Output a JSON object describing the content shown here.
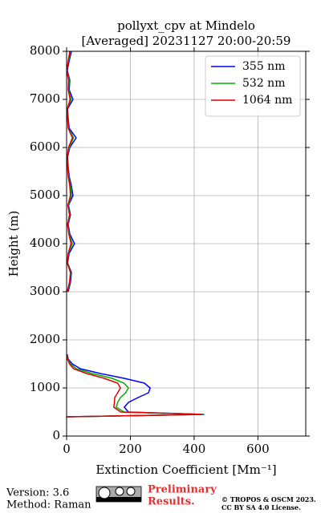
{
  "chart_data": {
    "type": "profile",
    "title": "pollyxt_cpv at Mindelo",
    "subtitle": "[Averaged] 20231127 20:00-20:59",
    "xlabel": "Extinction Coefficient [Mm⁻¹]",
    "ylabel": "Height (m)",
    "y": [
      400,
      450,
      500,
      600,
      700,
      800,
      900,
      1000,
      1100,
      1200,
      1300,
      1400,
      1500,
      1600,
      1700,
      2400,
      3000,
      3200,
      3400,
      3600,
      3800,
      4000,
      4200,
      4400,
      4600,
      4800,
      5000,
      5200,
      5400,
      5600,
      5800,
      6000,
      6200,
      6400,
      6600,
      6800,
      7000,
      7200,
      7400,
      7600,
      7800,
      8000
    ],
    "series": [
      {
        "name": "355 nm",
        "color": "#0000ff",
        "values": [
          0,
          432,
          194,
          181,
          194,
          224,
          257,
          262,
          244,
          181,
          106,
          43,
          18,
          5,
          2,
          null,
          5,
          12,
          15,
          3,
          8,
          25,
          10,
          5,
          12,
          6,
          20,
          15,
          8,
          5,
          3,
          10,
          30,
          8,
          5,
          3,
          20,
          8,
          10,
          2,
          8,
          15
        ]
      },
      {
        "name": "532 nm",
        "color": "#00b000",
        "values": [
          0,
          430,
          180,
          156,
          160,
          169,
          185,
          194,
          180,
          143,
          80,
          30,
          12,
          4,
          1,
          null,
          3,
          10,
          13,
          2,
          6,
          18,
          8,
          4,
          10,
          5,
          15,
          12,
          6,
          4,
          2,
          8,
          22,
          6,
          4,
          2,
          14,
          6,
          8,
          1,
          6,
          12
        ]
      },
      {
        "name": "1064 nm",
        "color": "#e00000",
        "values": [
          0,
          425,
          170,
          148,
          150,
          151,
          160,
          169,
          160,
          118,
          63,
          22,
          9,
          3,
          1,
          null,
          2,
          9,
          12,
          2,
          5,
          14,
          7,
          3,
          9,
          4,
          12,
          10,
          5,
          3,
          2,
          6,
          18,
          5,
          3,
          2,
          11,
          5,
          6,
          1,
          5,
          10
        ]
      }
    ],
    "xlim": [
      0,
      750
    ],
    "xticks": [
      0,
      200,
      400,
      600
    ],
    "ylim": [
      0,
      8000
    ],
    "yticks": [
      0,
      1000,
      2000,
      3000,
      4000,
      5000,
      6000,
      7000,
      8000
    ],
    "grid": true,
    "legend": "upper right"
  },
  "footer": {
    "version": "Version: 3.6",
    "method": "Method: Raman",
    "preliminary": [
      "Preliminary",
      "Results."
    ],
    "notice": [
      "© TROPOS & OSCM 2023.",
      "CC BY SA 4.0 License."
    ]
  }
}
